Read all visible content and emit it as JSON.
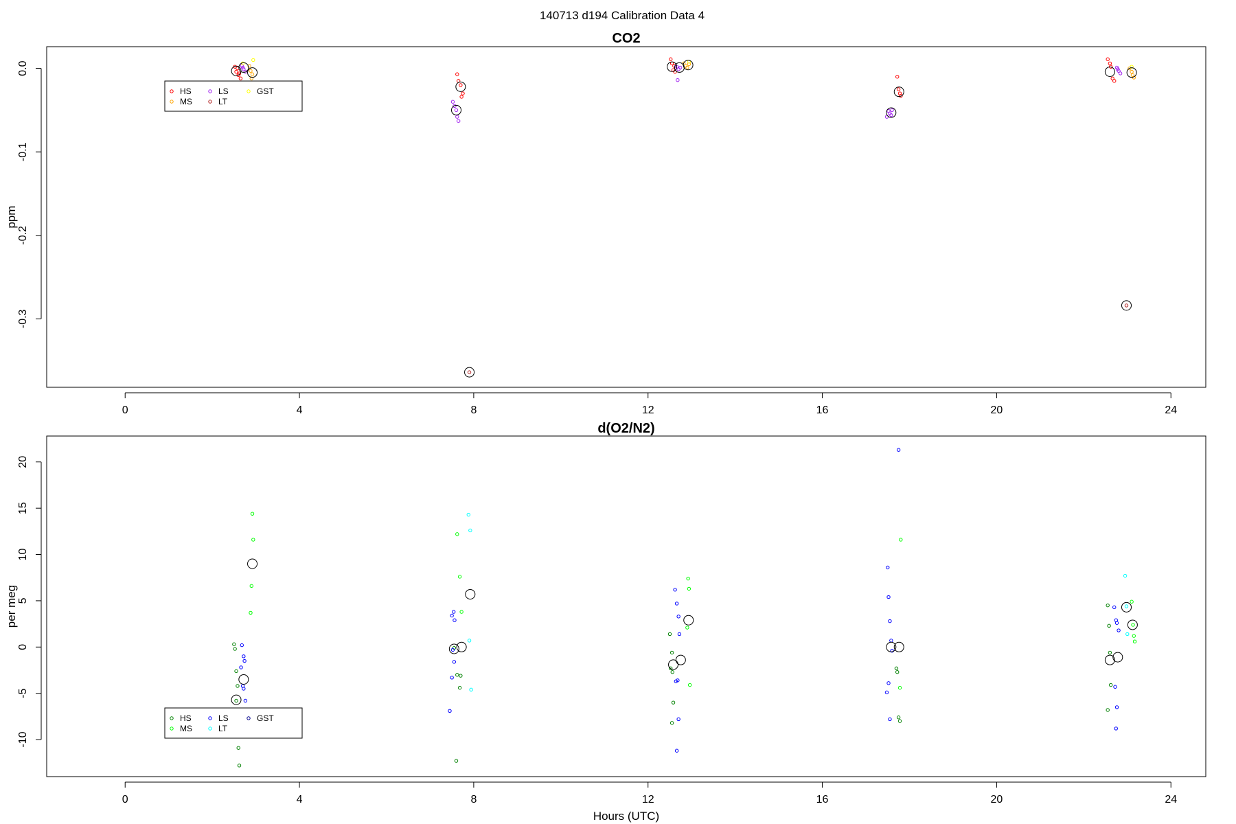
{
  "page_title": "140713   d194   Calibration Data 4",
  "chart_data": [
    {
      "type": "scatter",
      "title": "CO2",
      "xlabel": "",
      "ylabel": "ppm",
      "xlim": [
        -1.8,
        24.8
      ],
      "ylim": [
        -0.382,
        0.026
      ],
      "xticks": [
        0,
        4,
        8,
        12,
        16,
        20,
        24
      ],
      "yticks": [
        0.0,
        -0.1,
        -0.2,
        -0.3
      ],
      "ytick_labels": [
        "0.0",
        "-0.1",
        "-0.2",
        "-0.3"
      ],
      "legend": {
        "placement": "top-left",
        "entries": [
          {
            "label": "HS",
            "color": "#ff0000"
          },
          {
            "label": "MS",
            "color": "#ffa500"
          },
          {
            "label": "LS",
            "color": "#a020f0"
          },
          {
            "label": "LT",
            "color": "#b22222"
          },
          {
            "label": "GST",
            "color": "#ffff00"
          }
        ]
      },
      "series": [
        {
          "name": "HS",
          "color": "#ff0000",
          "points": [
            [
              2.52,
              0.002
            ],
            [
              2.55,
              -0.004
            ],
            [
              2.6,
              -0.008
            ],
            [
              2.65,
              -0.012
            ],
            [
              2.58,
              0.0
            ],
            [
              2.62,
              -0.006
            ],
            [
              7.62,
              -0.007
            ],
            [
              7.65,
              -0.015
            ],
            [
              7.7,
              -0.02
            ],
            [
              7.75,
              -0.03
            ],
            [
              7.72,
              -0.034
            ],
            [
              12.52,
              0.011
            ],
            [
              12.55,
              0.006
            ],
            [
              12.6,
              0.003
            ],
            [
              12.58,
              -0.002
            ],
            [
              12.62,
              -0.004
            ],
            [
              17.72,
              -0.01
            ],
            [
              17.75,
              -0.025
            ],
            [
              17.78,
              -0.03
            ],
            [
              17.8,
              -0.033
            ],
            [
              22.55,
              0.011
            ],
            [
              22.6,
              0.006
            ],
            [
              22.62,
              0.002
            ],
            [
              22.66,
              -0.012
            ],
            [
              22.7,
              -0.015
            ]
          ]
        },
        {
          "name": "MS",
          "color": "#ffa500",
          "points": [
            [
              2.85,
              0.003
            ],
            [
              2.88,
              -0.003
            ],
            [
              2.92,
              -0.007
            ],
            [
              2.9,
              -0.012
            ],
            [
              12.82,
              0.006
            ],
            [
              12.86,
              0.003
            ],
            [
              12.9,
              0.001
            ],
            [
              12.94,
              0.005
            ],
            [
              23.05,
              0.0
            ],
            [
              23.1,
              -0.004
            ],
            [
              23.12,
              -0.008
            ],
            [
              23.15,
              -0.011
            ]
          ]
        },
        {
          "name": "LS",
          "color": "#a020f0",
          "points": [
            [
              2.68,
              0.003
            ],
            [
              2.72,
              -0.001
            ],
            [
              2.76,
              -0.004
            ],
            [
              2.7,
              0.001
            ],
            [
              7.52,
              -0.04
            ],
            [
              7.56,
              -0.045
            ],
            [
              7.6,
              -0.05
            ],
            [
              7.62,
              -0.058
            ],
            [
              7.65,
              -0.063
            ],
            [
              12.66,
              0.002
            ],
            [
              12.7,
              -0.001
            ],
            [
              12.74,
              0.001
            ],
            [
              12.68,
              -0.014
            ],
            [
              17.52,
              -0.051
            ],
            [
              17.55,
              -0.054
            ],
            [
              17.58,
              -0.056
            ],
            [
              17.6,
              -0.05
            ],
            [
              17.48,
              -0.058
            ],
            [
              22.76,
              0.001
            ],
            [
              22.8,
              -0.003
            ],
            [
              22.84,
              -0.006
            ],
            [
              22.78,
              -0.001
            ]
          ]
        },
        {
          "name": "LT",
          "color": "#b22222",
          "points": [
            [
              7.9,
              -0.364
            ],
            [
              22.98,
              -0.284
            ]
          ]
        },
        {
          "name": "GST",
          "color": "#ffff00",
          "points": [
            [
              2.7,
              0.006
            ],
            [
              2.94,
              0.01
            ],
            [
              12.94,
              0.008
            ],
            [
              23.1,
              0.002
            ]
          ]
        },
        {
          "name": "",
          "color": "#000000",
          "kind": "mean",
          "points": [
            [
              2.55,
              -0.003
            ],
            [
              2.72,
              0.001
            ],
            [
              2.92,
              -0.005
            ],
            [
              7.6,
              -0.05
            ],
            [
              7.7,
              -0.022
            ],
            [
              7.9,
              -0.364
            ],
            [
              12.55,
              0.002
            ],
            [
              12.72,
              0.001
            ],
            [
              12.92,
              0.004
            ],
            [
              17.58,
              -0.053
            ],
            [
              17.76,
              -0.028
            ],
            [
              22.6,
              -0.004
            ],
            [
              22.98,
              -0.284
            ],
            [
              23.1,
              -0.005
            ]
          ]
        }
      ]
    },
    {
      "type": "scatter",
      "title": "d(O2/N2)",
      "xlabel": "Hours (UTC)",
      "ylabel": "per meg",
      "xlim": [
        -1.8,
        24.8
      ],
      "ylim": [
        -14.0,
        22.8
      ],
      "xticks": [
        0,
        4,
        8,
        12,
        16,
        20,
        24
      ],
      "yticks": [
        20,
        15,
        10,
        5,
        0,
        -5,
        -10
      ],
      "ytick_labels": [
        "20",
        "15",
        "10",
        "5",
        "0",
        "-5",
        "-10"
      ],
      "legend": {
        "placement": "bottom-left",
        "entries": [
          {
            "label": "HS",
            "color": "#008000"
          },
          {
            "label": "MS",
            "color": "#00ff00"
          },
          {
            "label": "LS",
            "color": "#0000ff"
          },
          {
            "label": "LT",
            "color": "#00ffff"
          },
          {
            "label": "GST",
            "color": "#00008b"
          }
        ]
      },
      "series": [
        {
          "name": "HS",
          "color": "#008000",
          "points": [
            [
              2.5,
              0.3
            ],
            [
              2.52,
              -0.2
            ],
            [
              2.55,
              -2.6
            ],
            [
              2.58,
              -4.2
            ],
            [
              2.55,
              -5.8
            ],
            [
              2.6,
              -10.9
            ],
            [
              2.62,
              -12.8
            ],
            [
              7.55,
              -0.1
            ],
            [
              7.62,
              -3.0
            ],
            [
              7.7,
              -3.1
            ],
            [
              7.68,
              -4.4
            ],
            [
              7.6,
              -12.3
            ],
            [
              12.5,
              1.4
            ],
            [
              12.55,
              -0.6
            ],
            [
              12.52,
              -2.3
            ],
            [
              12.56,
              -2.7
            ],
            [
              12.58,
              -6.0
            ],
            [
              12.55,
              -8.2
            ],
            [
              17.7,
              -2.3
            ],
            [
              17.72,
              -2.7
            ],
            [
              17.75,
              -7.6
            ],
            [
              17.78,
              -8.0
            ],
            [
              22.55,
              4.5
            ],
            [
              22.58,
              2.3
            ],
            [
              22.6,
              -0.6
            ],
            [
              22.62,
              -4.1
            ],
            [
              22.55,
              -6.8
            ]
          ]
        },
        {
          "name": "MS",
          "color": "#00ff00",
          "points": [
            [
              2.92,
              14.4
            ],
            [
              2.94,
              11.6
            ],
            [
              2.9,
              6.6
            ],
            [
              2.88,
              3.7
            ],
            [
              7.62,
              12.2
            ],
            [
              7.68,
              7.6
            ],
            [
              7.72,
              3.8
            ],
            [
              12.92,
              7.4
            ],
            [
              12.94,
              6.3
            ],
            [
              12.9,
              2.1
            ],
            [
              12.96,
              -4.1
            ],
            [
              17.8,
              11.6
            ],
            [
              17.78,
              -4.4
            ],
            [
              23.1,
              4.9
            ],
            [
              23.13,
              2.4
            ],
            [
              23.15,
              1.2
            ],
            [
              23.17,
              0.6
            ]
          ]
        },
        {
          "name": "LS",
          "color": "#0000ff",
          "points": [
            [
              2.68,
              0.2
            ],
            [
              2.72,
              -1.0
            ],
            [
              2.74,
              -1.5
            ],
            [
              2.66,
              -2.2
            ],
            [
              2.7,
              -4.2
            ],
            [
              2.72,
              -4.5
            ],
            [
              2.76,
              -5.8
            ],
            [
              7.5,
              3.4
            ],
            [
              7.54,
              3.8
            ],
            [
              7.56,
              2.9
            ],
            [
              7.52,
              -0.3
            ],
            [
              7.55,
              -1.6
            ],
            [
              7.5,
              -3.3
            ],
            [
              7.45,
              -6.9
            ],
            [
              12.62,
              6.2
            ],
            [
              12.66,
              4.7
            ],
            [
              12.7,
              3.3
            ],
            [
              12.72,
              1.4
            ],
            [
              12.64,
              -3.7
            ],
            [
              12.68,
              -3.6
            ],
            [
              12.7,
              -7.8
            ],
            [
              12.66,
              -11.2
            ],
            [
              17.5,
              8.6
            ],
            [
              17.52,
              5.4
            ],
            [
              17.55,
              2.8
            ],
            [
              17.58,
              0.7
            ],
            [
              17.6,
              -0.4
            ],
            [
              17.52,
              -3.9
            ],
            [
              17.48,
              -4.9
            ],
            [
              17.55,
              -7.8
            ],
            [
              17.75,
              21.3
            ],
            [
              22.7,
              4.3
            ],
            [
              22.74,
              2.9
            ],
            [
              22.76,
              2.6
            ],
            [
              22.8,
              1.8
            ],
            [
              22.72,
              -4.3
            ],
            [
              22.76,
              -6.5
            ],
            [
              22.74,
              -8.8
            ]
          ]
        },
        {
          "name": "LT",
          "color": "#00ffff",
          "points": [
            [
              7.88,
              14.3
            ],
            [
              7.92,
              12.6
            ],
            [
              7.9,
              0.7
            ],
            [
              7.94,
              -4.6
            ],
            [
              22.95,
              7.7
            ],
            [
              22.98,
              4.4
            ],
            [
              23.0,
              1.4
            ]
          ]
        },
        {
          "name": "GST",
          "color": "#00008b",
          "points": []
        },
        {
          "name": "",
          "color": "#000000",
          "kind": "mean",
          "points": [
            [
              2.55,
              -5.7
            ],
            [
              2.72,
              -3.5
            ],
            [
              2.92,
              9.0
            ],
            [
              7.55,
              -0.2
            ],
            [
              7.72,
              0.0
            ],
            [
              7.92,
              5.7
            ],
            [
              12.58,
              -1.9
            ],
            [
              12.75,
              -1.4
            ],
            [
              12.93,
              2.9
            ],
            [
              17.58,
              0.0
            ],
            [
              17.76,
              0.0
            ],
            [
              22.6,
              -1.4
            ],
            [
              22.78,
              -1.1
            ],
            [
              22.98,
              4.3
            ],
            [
              23.12,
              2.4
            ]
          ]
        }
      ]
    }
  ]
}
